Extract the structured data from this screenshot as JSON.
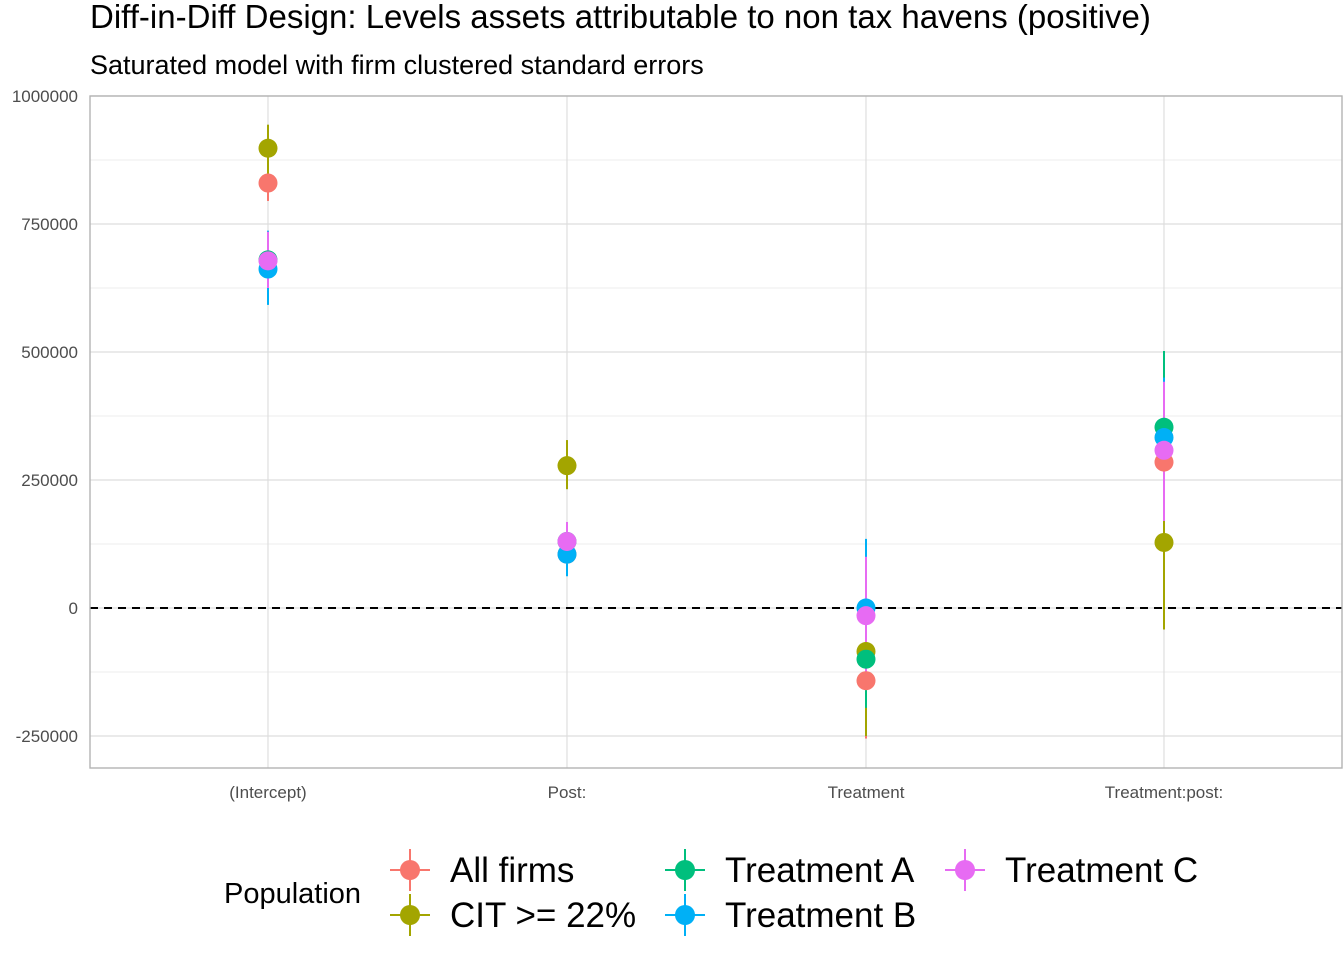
{
  "chart_data": {
    "type": "scatter",
    "title": "Diff-in-Diff Design: Levels assets attributable to non tax havens (positive)",
    "subtitle": "Saturated model with firm clustered standard errors",
    "xlabel": "",
    "ylabel": "",
    "categories": [
      "(Intercept)",
      "Post:",
      "Treatment",
      "Treatment:post:"
    ],
    "yticks": [
      -250000,
      0,
      250000,
      500000,
      750000,
      1000000
    ],
    "ytick_labels": [
      "-250000",
      "0",
      "250000",
      "500000",
      "750000",
      "1000000"
    ],
    "ylim": [
      -312500,
      1000000
    ],
    "grid": true,
    "reference_line": {
      "y": 0,
      "style": "dashed"
    },
    "legend": {
      "title": "Population",
      "position": "bottom"
    },
    "series": [
      {
        "name": "All firms",
        "color": "#F8766D",
        "values": [
          830000,
          105000,
          -142000,
          285000
        ],
        "lower": [
          795000,
          65000,
          -255000,
          120000
        ],
        "upper": [
          865000,
          150000,
          -30000,
          440000
        ]
      },
      {
        "name": "CIT >= 22%",
        "color": "#A3A500",
        "values": [
          898000,
          278000,
          -85000,
          128000
        ],
        "lower": [
          848000,
          232000,
          -250000,
          -42000
        ],
        "upper": [
          944000,
          328000,
          75000,
          300000
        ]
      },
      {
        "name": "Treatment A",
        "color": "#00BF7D",
        "values": [
          680000,
          130000,
          -100000,
          353000
        ],
        "lower": [
          620000,
          90000,
          -195000,
          210000
        ],
        "upper": [
          735000,
          165000,
          0,
          502000
        ]
      },
      {
        "name": "Treatment B",
        "color": "#00B0F6",
        "values": [
          662000,
          105000,
          0,
          333000
        ],
        "lower": [
          592000,
          62000,
          -120000,
          210000
        ],
        "upper": [
          737000,
          150000,
          135000,
          450000
        ]
      },
      {
        "name": "Treatment C",
        "color": "#E76BF3",
        "values": [
          678000,
          130000,
          -15000,
          308000
        ],
        "lower": [
          625000,
          92000,
          -130000,
          170000
        ],
        "upper": [
          735000,
          168000,
          100000,
          442000
        ]
      }
    ]
  }
}
